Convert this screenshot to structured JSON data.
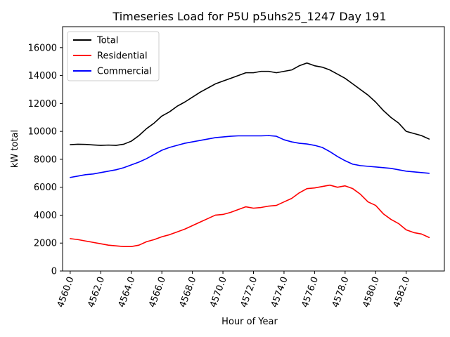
{
  "chart_data": {
    "type": "line",
    "title": "Timeseries Load for P5U p5uhs25_1247  Day 191",
    "xlabel": "Hour of Year",
    "ylabel": "kW total",
    "xlim": [
      4559.5,
      4584.5
    ],
    "ylim": [
      0,
      17500
    ],
    "xticks": [
      4560.0,
      4562.0,
      4564.0,
      4566.0,
      4568.0,
      4570.0,
      4572.0,
      4574.0,
      4576.0,
      4578.0,
      4580.0,
      4582.0
    ],
    "xtick_labels": [
      "4560.0",
      "4562.0",
      "4564.0",
      "4566.0",
      "4568.0",
      "4570.0",
      "4572.0",
      "4574.0",
      "4576.0",
      "4578.0",
      "4580.0",
      "4582.0"
    ],
    "yticks": [
      0,
      2000,
      4000,
      6000,
      8000,
      10000,
      12000,
      14000,
      16000
    ],
    "ytick_labels": [
      "0",
      "2000",
      "4000",
      "6000",
      "8000",
      "10000",
      "12000",
      "14000",
      "16000"
    ],
    "legend_position": "top-left",
    "series": [
      {
        "name": "Total",
        "color": "#000000",
        "x": [
          4560.0,
          4560.5,
          4561.0,
          4561.5,
          4562.0,
          4562.5,
          4563.0,
          4563.5,
          4564.0,
          4564.5,
          4565.0,
          4565.5,
          4566.0,
          4566.5,
          4567.0,
          4567.5,
          4568.0,
          4568.5,
          4569.0,
          4569.5,
          4570.0,
          4570.5,
          4571.0,
          4571.5,
          4572.0,
          4572.5,
          4573.0,
          4573.5,
          4574.0,
          4574.5,
          4575.0,
          4575.5,
          4576.0,
          4576.5,
          4577.0,
          4577.5,
          4578.0,
          4578.5,
          4579.0,
          4579.5,
          4580.0,
          4580.5,
          4581.0,
          4581.5,
          4582.0,
          4582.5,
          4583.0,
          4583.5
        ],
        "values": [
          9050,
          9080,
          9070,
          9030,
          9000,
          9020,
          9000,
          9080,
          9300,
          9700,
          10200,
          10600,
          11100,
          11400,
          11800,
          12100,
          12450,
          12800,
          13100,
          13400,
          13600,
          13800,
          14000,
          14200,
          14200,
          14300,
          14300,
          14200,
          14300,
          14400,
          14700,
          14900,
          14700,
          14600,
          14400,
          14100,
          13800,
          13400,
          13000,
          12600,
          12100,
          11500,
          11000,
          10600,
          10000,
          9850,
          9700,
          9450
        ]
      },
      {
        "name": "Residential",
        "color": "#ff0000",
        "x": [
          4560.0,
          4560.5,
          4561.0,
          4561.5,
          4562.0,
          4562.5,
          4563.0,
          4563.5,
          4564.0,
          4564.5,
          4565.0,
          4565.5,
          4566.0,
          4566.5,
          4567.0,
          4567.5,
          4568.0,
          4568.5,
          4569.0,
          4569.5,
          4570.0,
          4570.5,
          4571.0,
          4571.5,
          4572.0,
          4572.5,
          4573.0,
          4573.5,
          4574.0,
          4574.5,
          4575.0,
          4575.5,
          4576.0,
          4576.5,
          4577.0,
          4577.5,
          4578.0,
          4578.5,
          4579.0,
          4579.5,
          4580.0,
          4580.5,
          4581.0,
          4581.5,
          4582.0,
          4582.5,
          4583.0,
          4583.5
        ],
        "values": [
          2320,
          2250,
          2150,
          2050,
          1950,
          1850,
          1800,
          1750,
          1750,
          1850,
          2100,
          2250,
          2450,
          2600,
          2800,
          3000,
          3250,
          3500,
          3750,
          4000,
          4050,
          4200,
          4400,
          4600,
          4500,
          4550,
          4650,
          4700,
          4950,
          5200,
          5600,
          5900,
          5950,
          6050,
          6150,
          6000,
          6100,
          5900,
          5500,
          4950,
          4700,
          4100,
          3700,
          3400,
          2950,
          2750,
          2650,
          2400
        ]
      },
      {
        "name": "Commercial",
        "color": "#0000ff",
        "x": [
          4560.0,
          4560.5,
          4561.0,
          4561.5,
          4562.0,
          4562.5,
          4563.0,
          4563.5,
          4564.0,
          4564.5,
          4565.0,
          4565.5,
          4566.0,
          4566.5,
          4567.0,
          4567.5,
          4568.0,
          4568.5,
          4569.0,
          4569.5,
          4570.0,
          4570.5,
          4571.0,
          4571.5,
          4572.0,
          4572.5,
          4573.0,
          4573.5,
          4574.0,
          4574.5,
          4575.0,
          4575.5,
          4576.0,
          4576.5,
          4577.0,
          4577.5,
          4578.0,
          4578.5,
          4579.0,
          4579.5,
          4580.0,
          4580.5,
          4581.0,
          4581.5,
          4582.0,
          4582.5,
          4583.0,
          4583.5
        ],
        "values": [
          6700,
          6800,
          6900,
          6950,
          7050,
          7150,
          7250,
          7400,
          7600,
          7800,
          8050,
          8350,
          8650,
          8850,
          9000,
          9150,
          9250,
          9350,
          9450,
          9550,
          9600,
          9650,
          9680,
          9680,
          9680,
          9680,
          9700,
          9650,
          9400,
          9250,
          9150,
          9100,
          9000,
          8850,
          8550,
          8200,
          7900,
          7650,
          7550,
          7500,
          7450,
          7400,
          7350,
          7250,
          7150,
          7100,
          7050,
          7000
        ]
      }
    ]
  }
}
